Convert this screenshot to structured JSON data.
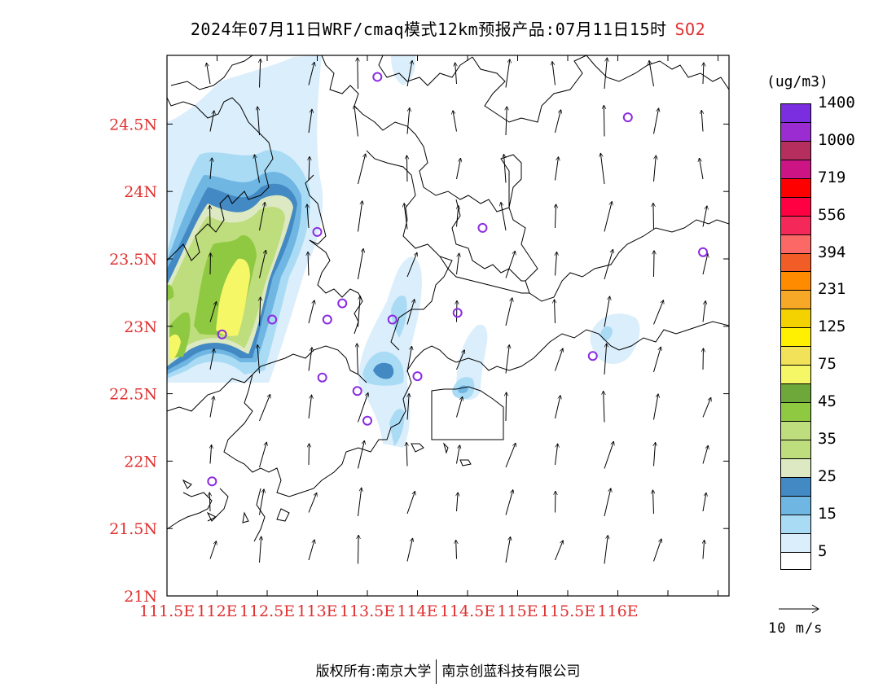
{
  "header": {
    "title": "2024年07月11日WRF/cmaq模式12km预报产品:07月11日15时",
    "pollutant": "SO2"
  },
  "map": {
    "lon_ticks": [
      "111.5E",
      "112E",
      "112.5E",
      "113E",
      "113.5E",
      "114E",
      "114.5E",
      "115E",
      "115.5E",
      "116E"
    ],
    "lat_ticks": [
      "24.5N",
      "24N",
      "23.5N",
      "23N",
      "22.5N",
      "22N",
      "21.5N",
      "21N"
    ],
    "extent": {
      "lon": [
        111.5,
        117.1
      ],
      "lat": [
        21,
        25.0
      ]
    },
    "stations": [
      {
        "lon": 113.6,
        "lat": 24.85
      },
      {
        "lon": 116.1,
        "lat": 24.55
      },
      {
        "lon": 113.0,
        "lat": 23.7
      },
      {
        "lon": 114.65,
        "lat": 23.73
      },
      {
        "lon": 116.85,
        "lat": 23.55
      },
      {
        "lon": 113.25,
        "lat": 23.17
      },
      {
        "lon": 113.1,
        "lat": 23.05
      },
      {
        "lon": 112.05,
        "lat": 22.94
      },
      {
        "lon": 112.55,
        "lat": 23.05
      },
      {
        "lon": 113.75,
        "lat": 23.05
      },
      {
        "lon": 114.4,
        "lat": 23.1
      },
      {
        "lon": 115.75,
        "lat": 22.78
      },
      {
        "lon": 113.05,
        "lat": 22.62
      },
      {
        "lon": 113.4,
        "lat": 22.52
      },
      {
        "lon": 113.5,
        "lat": 22.3
      },
      {
        "lon": 114.0,
        "lat": 22.63
      },
      {
        "lon": 111.95,
        "lat": 21.85
      }
    ]
  },
  "colorbar": {
    "unit": "(ug/m3)",
    "colors": [
      "#ffffff",
      "#dbeefb",
      "#a9dbf5",
      "#6fb6e3",
      "#4389c3",
      "#dce9c2",
      "#bedd7c",
      "#bedd7c",
      "#8ec941",
      "#6fa83a",
      "#f6f766",
      "#f2e25a",
      "#ffef00",
      "#f4d200",
      "#f7a827",
      "#ff8b00",
      "#f25c27",
      "#fb6865",
      "#f4295a",
      "#ff0043",
      "#ff0000",
      "#cc1484",
      "#b62e5e",
      "#9b2cd1",
      "#7a2ee0"
    ],
    "labels": [
      "5",
      "15",
      "25",
      "35",
      "45",
      "75",
      "125",
      "231",
      "394",
      "556",
      "719",
      "1000",
      "1400"
    ]
  },
  "wind_reference": {
    "label": "10 m/s"
  },
  "footer": {
    "owner": "版权所有:南京大学",
    "company": "南京创蓝科技有限公司"
  }
}
